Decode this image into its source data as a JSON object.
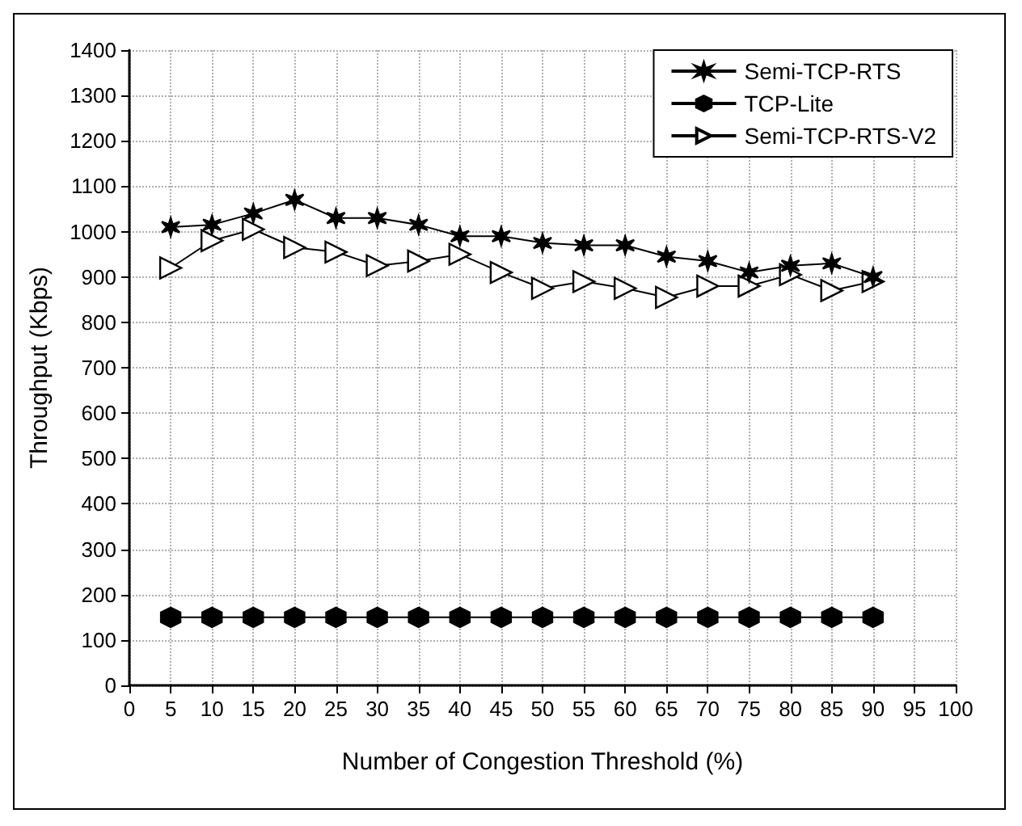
{
  "chart_data": {
    "type": "line",
    "xlabel": "Number of Congestion Threshold (%)",
    "ylabel": "Throughput (Kbps)",
    "x": [
      5,
      10,
      15,
      20,
      25,
      30,
      35,
      40,
      45,
      50,
      55,
      60,
      65,
      70,
      75,
      80,
      85,
      90
    ],
    "series": [
      {
        "name": "Semi-TCP-RTS",
        "color": "#000000",
        "marker": "cross",
        "values": [
          1010,
          1015,
          1040,
          1070,
          1030,
          1030,
          1015,
          990,
          990,
          975,
          970,
          970,
          945,
          935,
          910,
          925,
          930,
          900
        ]
      },
      {
        "name": "TCP-Lite",
        "color": "#000000",
        "marker": "circle",
        "values": [
          150,
          150,
          150,
          150,
          150,
          150,
          150,
          150,
          150,
          150,
          150,
          150,
          150,
          150,
          150,
          150,
          150,
          150
        ]
      },
      {
        "name": "Semi-TCP-RTS-V2",
        "color": "#000000",
        "marker": "triangle",
        "values": [
          920,
          980,
          1005,
          965,
          955,
          925,
          935,
          950,
          910,
          875,
          890,
          875,
          855,
          880,
          880,
          905,
          870,
          890
        ]
      }
    ],
    "xlim": [
      0,
      100
    ],
    "xticks": [
      0,
      5,
      10,
      15,
      20,
      25,
      30,
      35,
      40,
      45,
      50,
      55,
      60,
      65,
      70,
      75,
      80,
      85,
      90,
      95,
      100
    ],
    "ylim": [
      0,
      1400
    ],
    "yticks": [
      0,
      100,
      200,
      300,
      400,
      500,
      600,
      700,
      800,
      900,
      1000,
      1100,
      1200,
      1300,
      1400
    ],
    "grid": true,
    "legend": "top right",
    "line_style": "solid"
  }
}
